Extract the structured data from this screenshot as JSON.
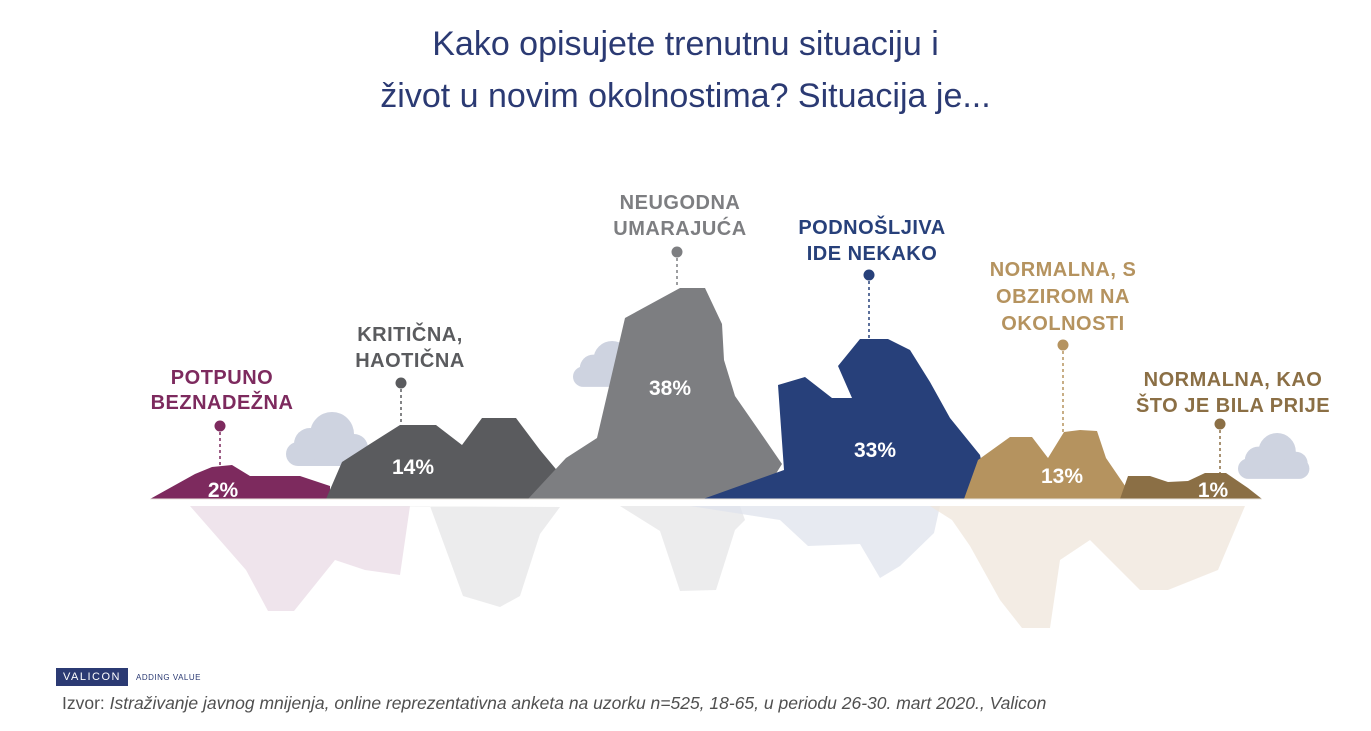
{
  "title": {
    "line1": "Kako opisujete trenutnu situaciju i",
    "line2": "život u novim okolnostima? Situacija je..."
  },
  "colors": {
    "title": "#2b3a73",
    "potpuno": "#7d2a5e",
    "kriticna": "#5a5b5e",
    "neugodna": "#7d7e81",
    "podnosljiva": "#27407a",
    "normalna_s": "#b5935f",
    "normalna_kao": "#8b6f45",
    "cloud": "#ced3e0"
  },
  "chart_data": {
    "type": "area",
    "categories": [
      "POTPUNO BEZNADEŽNA",
      "KRITIČNA, HAOTIČNA",
      "NEUGODNA UMARAJUĆA",
      "PODNOŠLJIVA IDE NEKAKO",
      "NORMALNA, S OBZIROM NA OKOLNOSTI",
      "NORMALNA, KAO ŠTO JE BILA PRIJE"
    ],
    "values": [
      2,
      14,
      38,
      33,
      13,
      1
    ],
    "value_labels": [
      "2%",
      "14%",
      "38%",
      "33%",
      "13%",
      "1%"
    ],
    "label_lines": [
      [
        "POTPUNO",
        "BEZNADEŽNA"
      ],
      [
        "KRITIČNA,",
        "HAOTIČNA"
      ],
      [
        "NEUGODNA",
        "UMARAJUĆA"
      ],
      [
        "PODNOŠLJIVA",
        "IDE NEKAKO"
      ],
      [
        "NORMALNA, S",
        "OBZIROM NA",
        "OKOLNOSTI"
      ],
      [
        "NORMALNA, KAO",
        "ŠTO JE BILA PRIJE"
      ]
    ]
  },
  "brand": {
    "name": "VALICON",
    "tagline": "ADDING VALUE"
  },
  "source": {
    "prefix": "Izvor: ",
    "text": "Istraživanje javnog mnijenja, online reprezentativna anketa na uzorku n=525, 18-65, u periodu 26-30. mart 2020., Valicon"
  }
}
